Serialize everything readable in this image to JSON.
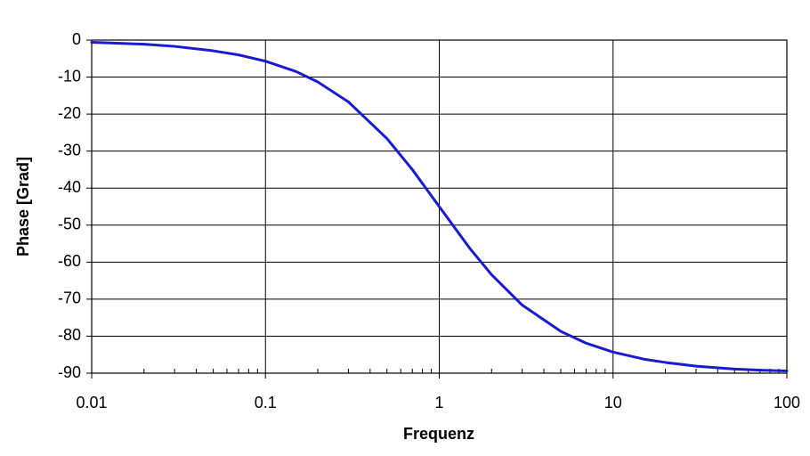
{
  "chart_data": {
    "type": "line",
    "x_label": "Frequenz",
    "y_label": "Phase [Grad]",
    "x": [
      0.01,
      0.02,
      0.03,
      0.05,
      0.07,
      0.1,
      0.15,
      0.2,
      0.3,
      0.5,
      0.7,
      1,
      1.5,
      2,
      3,
      5,
      7,
      10,
      15,
      20,
      30,
      50,
      70,
      100
    ],
    "series": [
      {
        "color": "#1a1ad2",
        "values": [
          -0.6,
          -1.1,
          -1.7,
          -2.9,
          -4.0,
          -5.7,
          -8.5,
          -11.3,
          -16.7,
          -26.6,
          -35.0,
          -45.0,
          -56.3,
          -63.4,
          -71.6,
          -78.7,
          -81.9,
          -84.3,
          -86.2,
          -87.1,
          -88.1,
          -88.9,
          -89.2,
          -89.4
        ]
      }
    ],
    "xscale": "log",
    "xlim": [
      0.01,
      100
    ],
    "xticks": [
      0.01,
      0.1,
      1,
      10,
      100
    ],
    "ylim": [
      -90,
      0
    ],
    "yticks": [
      0,
      -10,
      -20,
      -30,
      -40,
      -50,
      -60,
      -70,
      -80,
      -90
    ],
    "grid": true
  }
}
